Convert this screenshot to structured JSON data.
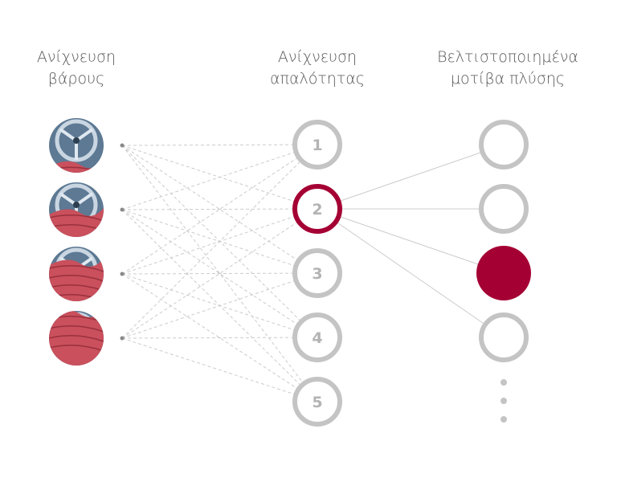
{
  "headers": {
    "weight": [
      "Ανίχνευση",
      "βάρους"
    ],
    "softness": [
      "Ανίχνευση",
      "απαλότητας"
    ],
    "patterns": [
      "Βελτιστοποιημένα",
      "μοτίβα πλύσης"
    ]
  },
  "load_levels": [
    {
      "label": "load-level-1",
      "fabric_fraction": 0.2
    },
    {
      "label": "load-level-2",
      "fabric_fraction": 0.5
    },
    {
      "label": "load-level-3",
      "fabric_fraction": 0.75
    },
    {
      "label": "load-level-4",
      "fabric_fraction": 1.0
    }
  ],
  "softness_nodes": [
    "1",
    "2",
    "3",
    "4",
    "5"
  ],
  "selected_softness": "2",
  "pattern_count_visible": 4,
  "selected_pattern_index": 2,
  "more_indicator": "ellipsis-vertical",
  "colors": {
    "accent": "#a50034",
    "ring": "#c4c4c4",
    "line": "#cccccc",
    "text": "#555555",
    "number": "#b3b3b3"
  }
}
